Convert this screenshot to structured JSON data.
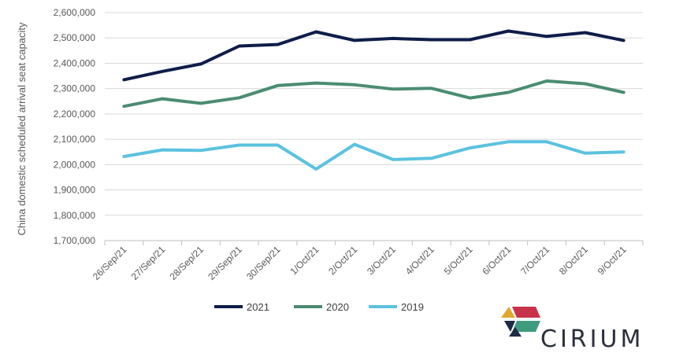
{
  "chart_data": {
    "type": "line",
    "title": "",
    "xlabel": "",
    "ylabel": "China domestic scheduled arrival seat capacity",
    "ylim": [
      1700000,
      2600000
    ],
    "ytick_step": 100000,
    "yticks": [
      "1,700,000",
      "1,800,000",
      "1,900,000",
      "2,000,000",
      "2,100,000",
      "2,200,000",
      "2,300,000",
      "2,400,000",
      "2,500,000",
      "2,600,000"
    ],
    "grid": true,
    "legend_position": "bottom",
    "categories": [
      "26/Sep/21",
      "27/Sep/21",
      "28/Sep/21",
      "29/Sep/21",
      "30/Sep/21",
      "1/Oct/21",
      "2/Oct/21",
      "3/Oct/21",
      "4/Oct/21",
      "5/Oct/21",
      "6/Oct/21",
      "7/Oct/21",
      "8/Oct/21",
      "9/Oct/21"
    ],
    "series": [
      {
        "name": "2021",
        "color": "#0f1d4a",
        "values": [
          2335000,
          2368000,
          2397000,
          2468000,
          2474000,
          2524000,
          2490000,
          2498000,
          2493000,
          2493000,
          2527000,
          2506000,
          2521000,
          2490000
        ]
      },
      {
        "name": "2020",
        "color": "#4a8c72",
        "values": [
          2230000,
          2260000,
          2242000,
          2264000,
          2312000,
          2322000,
          2315000,
          2298000,
          2301000,
          2263000,
          2285000,
          2330000,
          2319000,
          2285000
        ]
      },
      {
        "name": "2019",
        "color": "#5bc2e0",
        "values": [
          2032000,
          2058000,
          2056000,
          2077000,
          2077000,
          1982000,
          2080000,
          2020000,
          2025000,
          2066000,
          2090000,
          2090000,
          2045000,
          2050000
        ]
      }
    ]
  },
  "logo": {
    "text": "CIRIUM",
    "colors": [
      "#e0a82e",
      "#c9324b",
      "#3f9b7e",
      "#1f2a44"
    ]
  }
}
